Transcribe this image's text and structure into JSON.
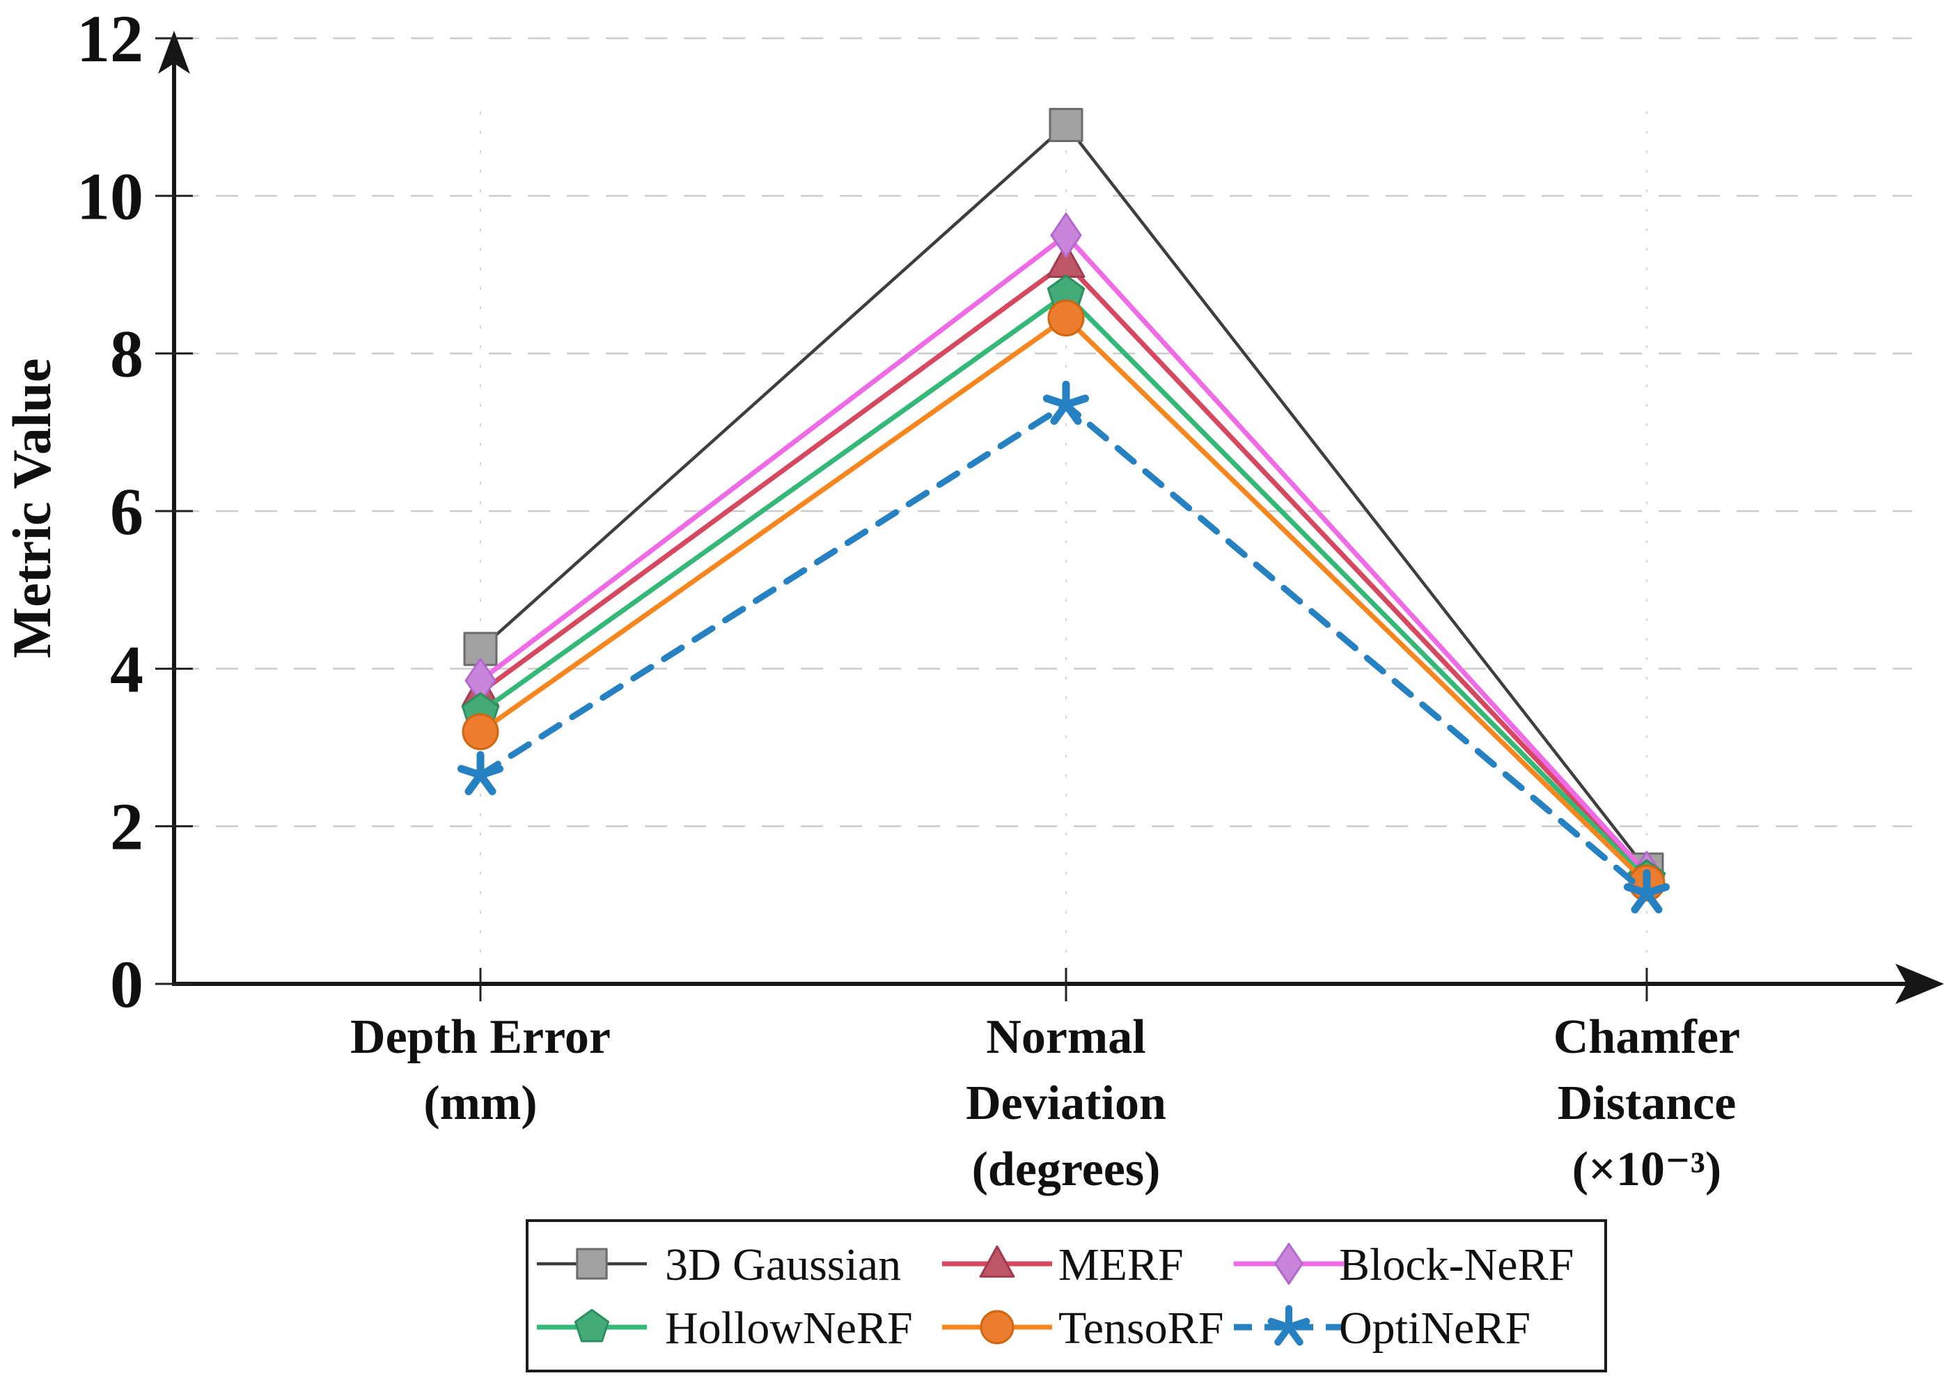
{
  "figure": {
    "background": "#ffffff",
    "axis_color": "#161616",
    "grid_color": "#cccccc",
    "guide_color": "#c6c6c6",
    "tick_label_color": "#101010"
  },
  "chart_data": {
    "type": "line",
    "title": "",
    "xlabel": "",
    "ylabel": "Metric Value",
    "y_axis": {
      "label": "Metric Value",
      "ticks": [
        0,
        2,
        4,
        6,
        8,
        10,
        12
      ],
      "lim": [
        0,
        12
      ],
      "grid": true
    },
    "categories": [
      {
        "id": "depth-error",
        "lines": [
          "Depth Error",
          "(mm)"
        ]
      },
      {
        "id": "normal-deviation",
        "lines": [
          "Normal",
          "Deviation",
          "(degrees)"
        ]
      },
      {
        "id": "chamfer-distance",
        "lines": [
          "Chamfer",
          "Distance",
          "(×10⁻³)"
        ]
      }
    ],
    "series": [
      {
        "name": "3D Gaussian",
        "marker": "square",
        "line_style": "solid",
        "line_color": "#3e3e3e",
        "marker_fill": "#a2a2a2",
        "marker_stroke": "#6b6b6b",
        "values": [
          4.25,
          10.9,
          1.45
        ]
      },
      {
        "name": "MERF",
        "marker": "triangle",
        "line_style": "solid",
        "line_color": "#d5485f",
        "marker_fill": "#bd5765",
        "marker_stroke": "#a23a4e",
        "values": [
          3.7,
          9.15,
          1.37
        ]
      },
      {
        "name": "Block-NeRF",
        "marker": "diamond",
        "line_style": "solid",
        "line_color": "#ee6ae6",
        "marker_fill": "#c985d9",
        "marker_stroke": "#b369cb",
        "values": [
          3.85,
          9.5,
          1.4
        ]
      },
      {
        "name": "HollowNeRF",
        "marker": "pentagon",
        "line_style": "solid",
        "line_color": "#33b878",
        "marker_fill": "#43ab77",
        "marker_stroke": "#2d8f5e",
        "values": [
          3.45,
          8.75,
          1.33
        ]
      },
      {
        "name": "TensoRF",
        "marker": "circle",
        "line_style": "solid",
        "line_color": "#f6861d",
        "marker_fill": "#ec7c2e",
        "marker_stroke": "#d0660f",
        "values": [
          3.2,
          8.45,
          1.28
        ]
      },
      {
        "name": "OptiNeRF",
        "marker": "star",
        "line_style": "dashed",
        "line_color": "#2581c1",
        "marker_fill": "#2581c1",
        "marker_stroke": "#2581c1",
        "values": [
          2.65,
          7.35,
          1.15
        ]
      }
    ],
    "legend": {
      "position": "bottom",
      "columns": 3,
      "border_color": "#1c1c1c",
      "background": "#ffffff"
    }
  }
}
